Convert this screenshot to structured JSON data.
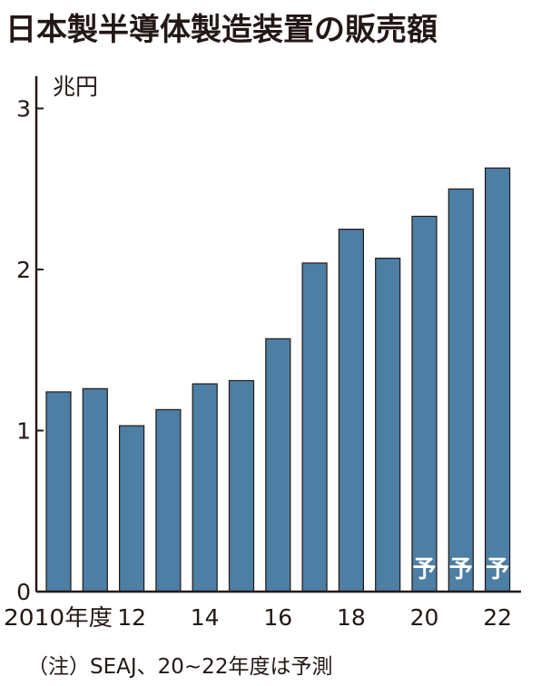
{
  "chart_data": {
    "type": "bar",
    "title": "日本製半導体製造装置の販売額",
    "unit": "兆円",
    "categories": [
      "2010",
      "11",
      "12",
      "13",
      "14",
      "15",
      "16",
      "17",
      "18",
      "19",
      "20",
      "21",
      "22"
    ],
    "x_tick_labels": [
      {
        "index": 0,
        "label": "2010年度"
      },
      {
        "index": 2,
        "label": "12"
      },
      {
        "index": 4,
        "label": "14"
      },
      {
        "index": 6,
        "label": "16"
      },
      {
        "index": 8,
        "label": "18"
      },
      {
        "index": 10,
        "label": "20"
      },
      {
        "index": 12,
        "label": "22"
      }
    ],
    "values": [
      1.24,
      1.26,
      1.03,
      1.13,
      1.29,
      1.31,
      1.57,
      2.04,
      2.25,
      2.07,
      2.33,
      2.5,
      2.63
    ],
    "forecast_indices": [
      10,
      11,
      12
    ],
    "forecast_label": "予",
    "ylim": [
      0,
      3.2
    ],
    "y_ticks": [
      0,
      1,
      2,
      3
    ],
    "bar_color": "#4d7ea4",
    "bar_border_color": "#231815",
    "axis_color": "#231815",
    "grid": false,
    "note": "（注）SEAJ、20~22年度は予測"
  }
}
